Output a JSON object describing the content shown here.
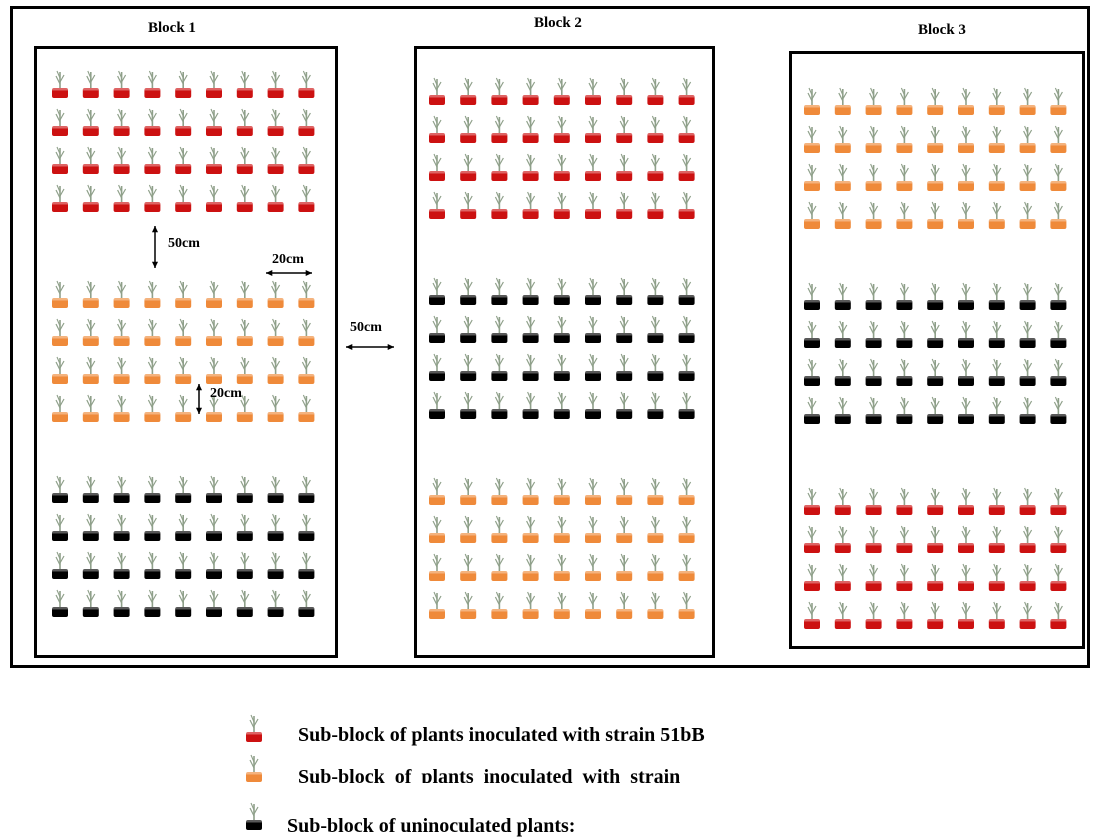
{
  "colors": {
    "strain_51bB": "#cc1111",
    "strain_orange": "#ef8a3a",
    "uninoculated": "#000000",
    "plant": "#8fa08a"
  },
  "blocks": [
    {
      "title": "Block 1",
      "sub_blocks": [
        "strain_51bB",
        "strain_orange",
        "uninoculated"
      ]
    },
    {
      "title": "Block 2",
      "sub_blocks": [
        "strain_51bB",
        "uninoculated",
        "strain_orange"
      ]
    },
    {
      "title": "Block 3",
      "sub_blocks": [
        "strain_orange",
        "uninoculated",
        "strain_51bB"
      ]
    }
  ],
  "sub_block_layout": {
    "rows": 4,
    "cols": 9
  },
  "spacing_labels": {
    "between_sub_blocks": "50cm",
    "between_plants_horizontal": "20cm",
    "between_plants_vertical": "20cm",
    "between_blocks": "50cm"
  },
  "legend": [
    {
      "color_key": "strain_51bB",
      "text": "Sub-block of plants inoculated with strain 51bB"
    },
    {
      "color_key": "strain_orange",
      "text": "Sub-block  of  plants  inoculated  with  strain"
    },
    {
      "color_key": "uninoculated",
      "text": "Sub-block of uninoculated plants:"
    }
  ]
}
